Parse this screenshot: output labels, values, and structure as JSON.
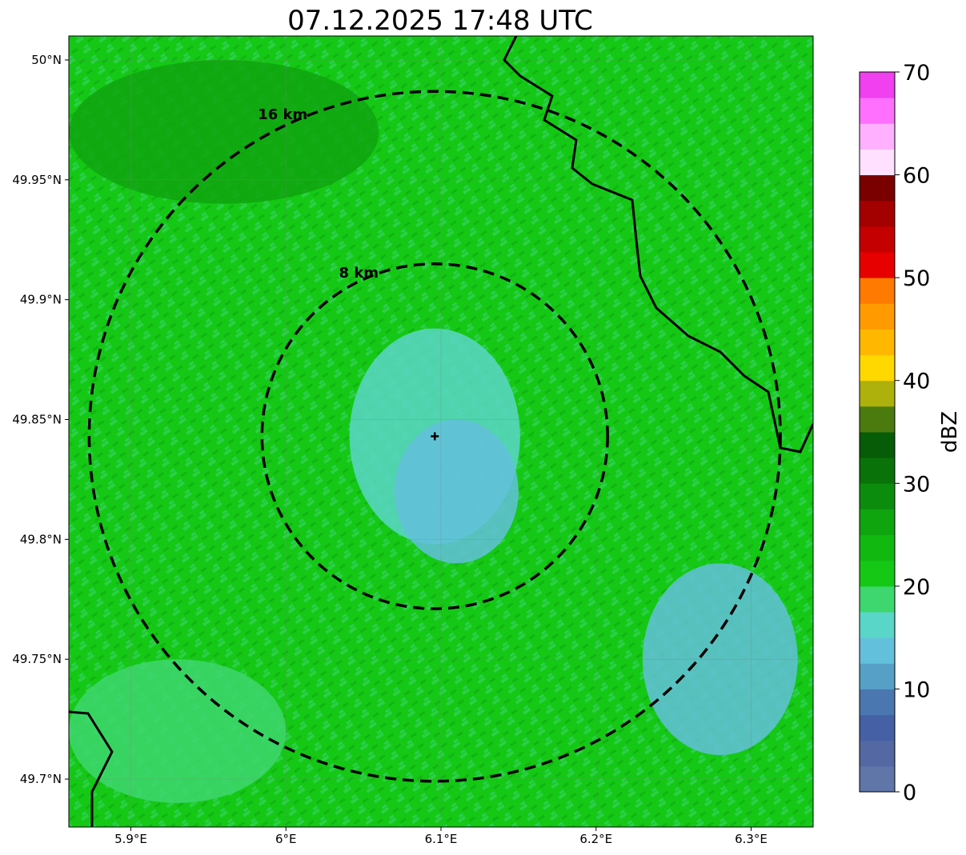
{
  "title": "07.12.2025 17:48 UTC",
  "map": {
    "lon_range": [
      5.86,
      6.34
    ],
    "lat_range": [
      49.68,
      50.01
    ],
    "lon_ticks": [
      {
        "value": 5.9,
        "label": "5.9°E"
      },
      {
        "value": 6.0,
        "label": "6°E"
      },
      {
        "value": 6.1,
        "label": "6.1°E"
      },
      {
        "value": 6.2,
        "label": "6.2°E"
      },
      {
        "value": 6.3,
        "label": "6.3°E"
      }
    ],
    "lat_ticks": [
      {
        "value": 50.0,
        "label": "50°N"
      },
      {
        "value": 49.95,
        "label": "49.95°N"
      },
      {
        "value": 49.9,
        "label": "49.9°N"
      },
      {
        "value": 49.85,
        "label": "49.85°N"
      },
      {
        "value": 49.8,
        "label": "49.8°N"
      },
      {
        "value": 49.75,
        "label": "49.75°N"
      },
      {
        "value": 49.7,
        "label": "49.7°N"
      }
    ],
    "radar_site": {
      "lon": 6.096,
      "lat": 49.843
    },
    "range_rings": [
      {
        "radius_km": 8,
        "label": "8 km"
      },
      {
        "radius_km": 16,
        "label": "16 km"
      }
    ],
    "background_reflectivity_dbz": 22
  },
  "colorbar": {
    "label": "dBZ",
    "min": 0,
    "max": 70,
    "step": 2.5,
    "tick_labels": [
      "0",
      "10",
      "20",
      "30",
      "40",
      "50",
      "60",
      "70"
    ],
    "colors": [
      "#6176a8",
      "#5468a3",
      "#4660a6",
      "#4b77b0",
      "#56a0c8",
      "#63c0dc",
      "#5ad6c8",
      "#3ed66f",
      "#14c815",
      "#11b810",
      "#0fa50f",
      "#0c8c0c",
      "#097309",
      "#075c07",
      "#4b7a0f",
      "#aeb00b",
      "#ffd800",
      "#ffb700",
      "#ff9a00",
      "#ff7a00",
      "#e60000",
      "#c40000",
      "#a30000",
      "#7a0000",
      "#ffe0ff",
      "#ffb0ff",
      "#ff70ff",
      "#f040f0"
    ]
  },
  "echo_regions": [
    {
      "lon": 6.096,
      "lat": 49.843,
      "rx": 0.055,
      "ry": 0.045,
      "dbz": 15,
      "note": "near-site weak echo"
    },
    {
      "lon": 6.11,
      "lat": 49.82,
      "rx": 0.04,
      "ry": 0.03,
      "dbz": 14
    },
    {
      "lon": 5.96,
      "lat": 49.97,
      "rx": 0.1,
      "ry": 0.03,
      "dbz": 27
    },
    {
      "lon": 6.28,
      "lat": 49.75,
      "rx": 0.05,
      "ry": 0.04,
      "dbz": 14
    },
    {
      "lon": 5.93,
      "lat": 49.72,
      "rx": 0.07,
      "ry": 0.03,
      "dbz": 18
    }
  ]
}
